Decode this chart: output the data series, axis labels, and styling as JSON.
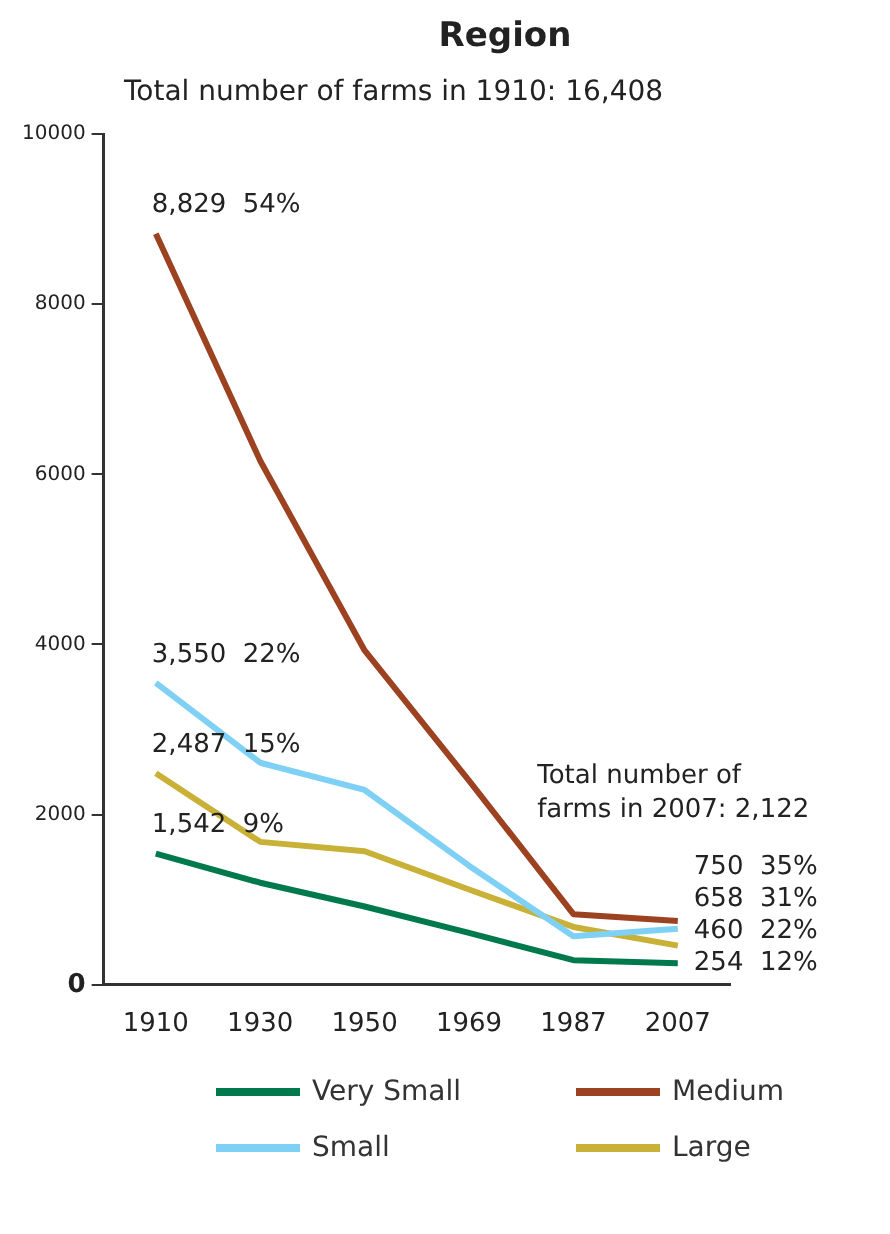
{
  "chart_data": {
    "type": "line",
    "title": "Region",
    "subtitle": "Total number of farms in 1910: 16,408",
    "categories": [
      "1910",
      "1930",
      "1950",
      "1969",
      "1987",
      "2007"
    ],
    "series": [
      {
        "name": "Very Small",
        "color": "#007a4d",
        "values": [
          1542,
          1200,
          920,
          610,
          290,
          254
        ],
        "value_labels": [
          "1,542  9%",
          null,
          null,
          null,
          null,
          "254  12%"
        ]
      },
      {
        "name": "Medium",
        "color": "#9c4220",
        "values": [
          8829,
          6160,
          3930,
          2400,
          830,
          750
        ],
        "value_labels": [
          "8,829  54%",
          null,
          null,
          null,
          null,
          "750  35%"
        ]
      },
      {
        "name": "Small",
        "color": "#7fd0f5",
        "values": [
          3550,
          2610,
          2290,
          1400,
          570,
          658
        ],
        "value_labels": [
          "3,550  22%",
          null,
          null,
          null,
          null,
          "658  31%"
        ]
      },
      {
        "name": "Large",
        "color": "#c9b037",
        "values": [
          2487,
          1680,
          1570,
          1120,
          680,
          460
        ],
        "value_labels": [
          "2,487  15%",
          null,
          null,
          null,
          null,
          "460  22%"
        ]
      }
    ],
    "ylim": [
      0,
      10000
    ],
    "yticks": [
      0,
      2000,
      4000,
      6000,
      8000,
      10000
    ],
    "annotations": [
      "Total number of farms in 2007: 2,122"
    ],
    "grid": false,
    "legend": "bottom",
    "marker": "none",
    "line_style": "solid"
  }
}
